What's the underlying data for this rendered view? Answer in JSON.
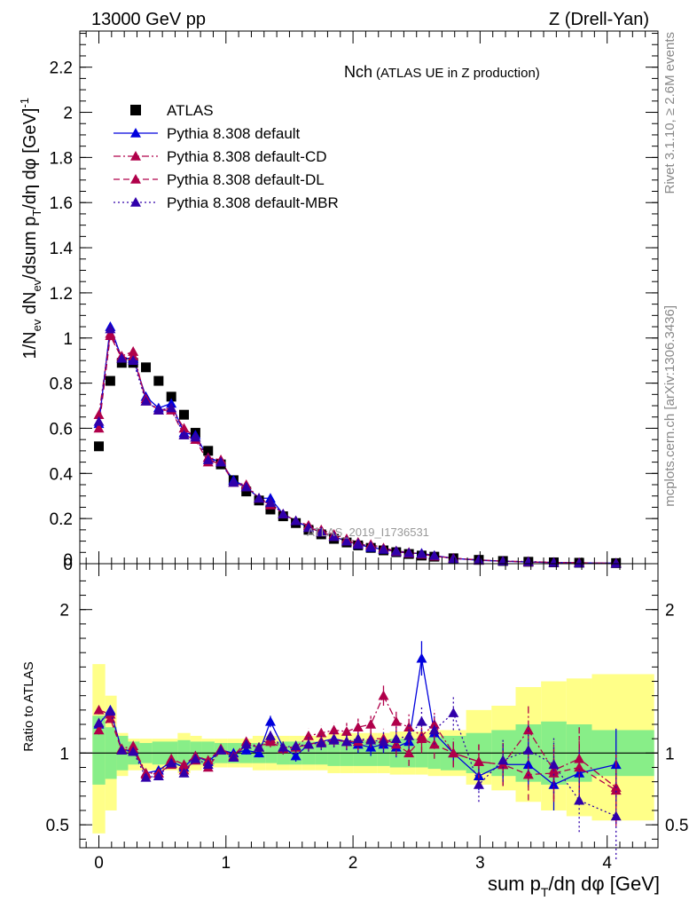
{
  "header": {
    "left": "13000 GeV pp",
    "right": "Z (Drell-Yan)"
  },
  "side_labels": {
    "rivet": "Rivet 3.1.10, ≥ 2.6M events",
    "mcplots": "mcplots.cern.ch [arXiv:1306.3436]"
  },
  "chart_data": [
    {
      "type": "scatter",
      "panel": "main",
      "title": "Nch",
      "subtitle": "(ATLAS UE in Z production)",
      "watermark": "ATLAS_2019_I1736531",
      "ylabel": "1/N_ev dN_ev/dsum p_T/dη dφ [GeV]^-1",
      "xlabel": "sum p_T/dη dφ [GeV]",
      "xlim": [
        -0.15,
        4.4
      ],
      "ylim": [
        0,
        2.36
      ],
      "y_ticks": [
        "0",
        "0.2",
        "0.4",
        "0.6",
        "0.8",
        "1",
        "1.2",
        "1.4",
        "1.6",
        "1.8",
        "2",
        "2.2"
      ],
      "x_ticks": [
        "0",
        "1",
        "2",
        "3",
        "4"
      ],
      "x": [
        0.0,
        0.09,
        0.18,
        0.27,
        0.37,
        0.47,
        0.57,
        0.67,
        0.76,
        0.86,
        0.96,
        1.06,
        1.16,
        1.26,
        1.35,
        1.45,
        1.55,
        1.65,
        1.75,
        1.85,
        1.95,
        2.04,
        2.14,
        2.24,
        2.34,
        2.44,
        2.54,
        2.64,
        2.79,
        2.99,
        3.18,
        3.38,
        3.58,
        3.78,
        4.07
      ],
      "legend": [
        "ATLAS",
        "Pythia 8.308 default",
        "Pythia 8.308 default-CD",
        "Pythia 8.308 default-DL",
        "Pythia 8.308 default-MBR"
      ],
      "series": [
        {
          "name": "ATLAS",
          "color": "#000000",
          "marker": "square",
          "values": [
            0.52,
            0.81,
            0.89,
            0.89,
            0.87,
            0.81,
            0.74,
            0.66,
            0.58,
            0.5,
            0.44,
            0.37,
            0.32,
            0.28,
            0.24,
            0.21,
            0.18,
            0.15,
            0.13,
            0.11,
            0.094,
            0.081,
            0.07,
            0.059,
            0.051,
            0.043,
            0.036,
            0.031,
            0.024,
            0.017,
            0.012,
            0.0085,
            0.006,
            0.0042,
            0.0025
          ]
        },
        {
          "name": "Pythia 8.308 default",
          "color": "#0000dd",
          "style": "solid",
          "values": [
            0.62,
            1.05,
            0.91,
            0.91,
            0.74,
            0.69,
            0.71,
            0.58,
            0.57,
            0.47,
            0.45,
            0.37,
            0.34,
            0.29,
            0.29,
            0.22,
            0.19,
            0.16,
            0.14,
            0.12,
            0.1,
            0.085,
            0.072,
            0.063,
            0.053,
            0.047,
            0.046,
            0.036,
            0.024,
            0.015,
            0.011,
            0.0075,
            0.0046,
            0.0036,
            0.0023
          ]
        },
        {
          "name": "Pythia 8.308 default-CD",
          "color": "#b0004a",
          "style": "dashdot",
          "values": [
            0.66,
            1.02,
            0.92,
            0.94,
            0.72,
            0.68,
            0.69,
            0.6,
            0.56,
            0.47,
            0.46,
            0.36,
            0.35,
            0.29,
            0.27,
            0.22,
            0.19,
            0.17,
            0.15,
            0.13,
            0.11,
            0.095,
            0.085,
            0.07,
            0.057,
            0.05,
            0.043,
            0.034,
            0.024,
            0.017,
            0.011,
            0.0099,
            0.0053,
            0.0041,
            0.0019
          ]
        },
        {
          "name": "Pythia 8.308 default-DL",
          "color": "#b0004a",
          "style": "dashed",
          "values": [
            0.6,
            1.01,
            0.91,
            0.92,
            0.73,
            0.68,
            0.68,
            0.57,
            0.55,
            0.45,
            0.45,
            0.36,
            0.34,
            0.29,
            0.26,
            0.22,
            0.19,
            0.16,
            0.14,
            0.12,
            0.1,
            0.088,
            0.078,
            0.065,
            0.054,
            0.046,
            0.041,
            0.033,
            0.024,
            0.016,
            0.011,
            0.0074,
            0.0052,
            0.0038,
            0.0018
          ]
        },
        {
          "name": "Pythia 8.308 default-MBR",
          "color": "#3000aa",
          "style": "dotted",
          "values": [
            0.63,
            1.04,
            0.91,
            0.9,
            0.72,
            0.68,
            0.69,
            0.57,
            0.56,
            0.46,
            0.45,
            0.36,
            0.34,
            0.29,
            0.27,
            0.22,
            0.19,
            0.16,
            0.14,
            0.12,
            0.1,
            0.089,
            0.076,
            0.064,
            0.056,
            0.048,
            0.044,
            0.036,
            0.022,
            0.017,
            0.011,
            0.0087,
            0.0055,
            0.0028,
            0.0014
          ]
        }
      ]
    },
    {
      "type": "scatter",
      "panel": "ratio",
      "ylabel": "Ratio to ATLAS",
      "ylim": [
        0.34,
        2.32
      ],
      "y_ticks": [
        "0.5",
        "1",
        "2"
      ],
      "band_edges": [
        -0.05,
        0.05,
        0.14,
        0.23,
        0.32,
        0.42,
        0.52,
        0.62,
        0.72,
        0.81,
        0.91,
        1.01,
        1.11,
        1.21,
        1.31,
        1.4,
        1.5,
        1.6,
        1.7,
        1.8,
        1.9,
        2.0,
        2.09,
        2.19,
        2.29,
        2.39,
        2.49,
        2.59,
        2.69,
        2.89,
        3.09,
        3.28,
        3.48,
        3.68,
        3.88,
        4.37
      ],
      "band_green": [
        [
          0.78,
          1.26
        ],
        [
          0.82,
          1.18
        ],
        [
          0.88,
          1.12
        ],
        [
          0.92,
          1.08
        ],
        [
          0.93,
          1.07
        ],
        [
          0.92,
          1.08
        ],
        [
          0.92,
          1.08
        ],
        [
          0.91,
          1.09
        ],
        [
          0.92,
          1.08
        ],
        [
          0.92,
          1.08
        ],
        [
          0.93,
          1.07
        ],
        [
          0.93,
          1.07
        ],
        [
          0.93,
          1.07
        ],
        [
          0.93,
          1.07
        ],
        [
          0.93,
          1.07
        ],
        [
          0.92,
          1.08
        ],
        [
          0.92,
          1.08
        ],
        [
          0.92,
          1.08
        ],
        [
          0.92,
          1.08
        ],
        [
          0.91,
          1.09
        ],
        [
          0.91,
          1.09
        ],
        [
          0.91,
          1.09
        ],
        [
          0.91,
          1.09
        ],
        [
          0.91,
          1.09
        ],
        [
          0.9,
          1.1
        ],
        [
          0.9,
          1.1
        ],
        [
          0.9,
          1.1
        ],
        [
          0.89,
          1.11
        ],
        [
          0.88,
          1.12
        ],
        [
          0.86,
          1.14
        ],
        [
          0.84,
          1.16
        ],
        [
          0.8,
          1.2
        ],
        [
          0.78,
          1.22
        ],
        [
          0.8,
          1.2
        ],
        [
          0.84,
          1.16
        ]
      ],
      "band_yellow": [
        [
          0.44,
          1.62
        ],
        [
          0.6,
          1.4
        ],
        [
          0.84,
          1.14
        ],
        [
          0.88,
          1.1
        ],
        [
          0.88,
          1.1
        ],
        [
          0.88,
          1.1
        ],
        [
          0.88,
          1.1
        ],
        [
          0.86,
          1.14
        ],
        [
          0.88,
          1.12
        ],
        [
          0.9,
          1.1
        ],
        [
          0.9,
          1.1
        ],
        [
          0.9,
          1.1
        ],
        [
          0.9,
          1.1
        ],
        [
          0.88,
          1.12
        ],
        [
          0.88,
          1.12
        ],
        [
          0.88,
          1.12
        ],
        [
          0.88,
          1.12
        ],
        [
          0.88,
          1.12
        ],
        [
          0.88,
          1.12
        ],
        [
          0.86,
          1.14
        ],
        [
          0.86,
          1.14
        ],
        [
          0.86,
          1.14
        ],
        [
          0.86,
          1.14
        ],
        [
          0.86,
          1.14
        ],
        [
          0.85,
          1.15
        ],
        [
          0.85,
          1.15
        ],
        [
          0.85,
          1.15
        ],
        [
          0.84,
          1.16
        ],
        [
          0.84,
          1.16
        ],
        [
          0.78,
          1.3
        ],
        [
          0.74,
          1.33
        ],
        [
          0.66,
          1.46
        ],
        [
          0.6,
          1.5
        ],
        [
          0.56,
          1.52
        ],
        [
          0.53,
          1.55
        ]
      ],
      "series": [
        {
          "name": "Pythia 8.308 default",
          "color": "#0000dd",
          "style": "solid",
          "values": [
            1.2,
            1.3,
            1.02,
            1.02,
            0.86,
            0.88,
            0.94,
            0.9,
            0.98,
            0.94,
            1.02,
            1.0,
            1.02,
            1.0,
            1.22,
            1.04,
            0.98,
            1.06,
            1.08,
            1.1,
            1.08,
            1.06,
            1.04,
            1.06,
            1.04,
            1.08,
            1.66,
            1.14,
            1.0,
            0.84,
            0.92,
            0.92,
            0.78,
            0.86,
            0.92
          ],
          "errors": [
            0.03,
            0.02,
            0.02,
            0.02,
            0.02,
            0.02,
            0.02,
            0.02,
            0.02,
            0.02,
            0.02,
            0.03,
            0.03,
            0.03,
            0.04,
            0.04,
            0.04,
            0.04,
            0.05,
            0.05,
            0.05,
            0.06,
            0.06,
            0.06,
            0.07,
            0.08,
            0.12,
            0.1,
            0.08,
            0.1,
            0.15,
            0.16,
            0.18,
            0.2,
            0.25
          ]
        },
        {
          "name": "Pythia 8.308 default-CD",
          "color": "#b0004a",
          "style": "dashdot",
          "values": [
            1.3,
            1.27,
            1.03,
            1.05,
            0.86,
            0.86,
            0.96,
            0.92,
            0.98,
            0.95,
            1.03,
            0.98,
            1.08,
            1.04,
            1.1,
            1.04,
            1.04,
            1.12,
            1.14,
            1.16,
            1.15,
            1.18,
            1.2,
            1.4,
            1.22,
            1.18,
            1.12,
            1.2,
            1.0,
            0.94,
            0.92,
            1.16,
            0.88,
            0.96,
            0.76
          ],
          "errors": [
            0.03,
            0.02,
            0.02,
            0.02,
            0.02,
            0.02,
            0.02,
            0.02,
            0.02,
            0.02,
            0.02,
            0.03,
            0.03,
            0.03,
            0.04,
            0.04,
            0.04,
            0.05,
            0.05,
            0.05,
            0.06,
            0.06,
            0.06,
            0.07,
            0.08,
            0.09,
            0.1,
            0.1,
            0.1,
            0.12,
            0.15,
            0.18,
            0.2,
            0.22,
            0.25
          ]
        },
        {
          "name": "Pythia 8.308 default-DL",
          "color": "#b0004a",
          "style": "dashed",
          "values": [
            1.16,
            1.24,
            1.02,
            1.03,
            0.85,
            0.86,
            0.92,
            0.88,
            0.95,
            0.9,
            1.02,
            0.97,
            1.06,
            1.04,
            1.08,
            1.03,
            1.04,
            1.06,
            1.08,
            1.09,
            1.08,
            1.08,
            1.1,
            1.1,
            1.06,
            1.0,
            1.1,
            1.06,
            1.0,
            0.94,
            0.92,
            0.85,
            0.86,
            0.9,
            0.74
          ],
          "errors": [
            0.03,
            0.02,
            0.02,
            0.02,
            0.02,
            0.02,
            0.02,
            0.02,
            0.02,
            0.02,
            0.02,
            0.03,
            0.03,
            0.03,
            0.04,
            0.04,
            0.04,
            0.05,
            0.05,
            0.05,
            0.06,
            0.06,
            0.06,
            0.07,
            0.08,
            0.09,
            0.1,
            0.1,
            0.1,
            0.12,
            0.15,
            0.18,
            0.2,
            0.22,
            0.25
          ]
        },
        {
          "name": "Pythia 8.308 default-MBR",
          "color": "#3000aa",
          "style": "dotted",
          "values": [
            1.21,
            1.29,
            1.02,
            1.01,
            0.83,
            0.84,
            0.93,
            0.86,
            0.96,
            0.92,
            1.02,
            0.97,
            1.06,
            1.04,
            1.12,
            1.04,
            1.05,
            1.06,
            1.07,
            1.09,
            1.08,
            1.1,
            1.09,
            1.08,
            1.1,
            1.12,
            1.22,
            1.16,
            1.28,
            0.78,
            0.95,
            1.02,
            0.92,
            0.67,
            0.56
          ],
          "errors": [
            0.03,
            0.02,
            0.02,
            0.02,
            0.02,
            0.02,
            0.02,
            0.02,
            0.02,
            0.02,
            0.02,
            0.03,
            0.03,
            0.03,
            0.04,
            0.04,
            0.04,
            0.05,
            0.05,
            0.05,
            0.06,
            0.06,
            0.06,
            0.07,
            0.08,
            0.09,
            0.1,
            0.1,
            0.12,
            0.12,
            0.15,
            0.18,
            0.2,
            0.22,
            0.3
          ]
        }
      ]
    }
  ]
}
